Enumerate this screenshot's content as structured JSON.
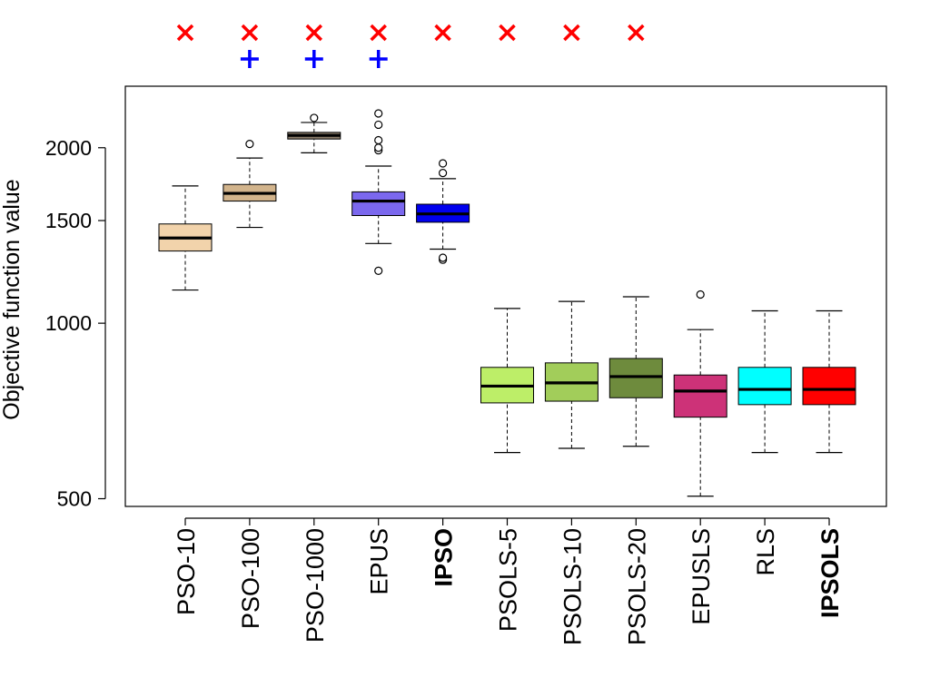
{
  "chart_data": {
    "type": "boxplot",
    "ylabel": "Objective function value",
    "y_scale": "log",
    "ylim": [
      485,
      2550
    ],
    "yticks": [
      500,
      1000,
      1500,
      2000
    ],
    "ytick_labels": [
      "500",
      "1000",
      "1500",
      "2000"
    ],
    "categories": [
      {
        "label": "PSO-10",
        "bold": false,
        "color": "#F2D3AB",
        "whisker_low": 1140,
        "q1": 1330,
        "median": 1400,
        "q3": 1480,
        "whisker_high": 1720,
        "outliers": []
      },
      {
        "label": "PSO-100",
        "bold": false,
        "color": "#D2B48C",
        "whisker_low": 1460,
        "q1": 1620,
        "median": 1670,
        "q3": 1730,
        "whisker_high": 1920,
        "outliers": [
          2030
        ]
      },
      {
        "label": "PSO-1000",
        "bold": false,
        "color": "#8B7D6B",
        "whisker_low": 1960,
        "q1": 2070,
        "median": 2100,
        "q3": 2125,
        "whisker_high": 2210,
        "outliers": [
          2250
        ]
      },
      {
        "label": "EPUS",
        "bold": false,
        "color": "#7B68EE",
        "whisker_low": 1370,
        "q1": 1530,
        "median": 1620,
        "q3": 1680,
        "whisker_high": 1860,
        "outliers": [
          1230,
          1980,
          2000,
          2060,
          2190,
          2290
        ]
      },
      {
        "label": "IPSO",
        "bold": true,
        "color": "#0000EE",
        "whisker_low": 1340,
        "q1": 1490,
        "median": 1540,
        "q3": 1600,
        "whisker_high": 1770,
        "outliers": [
          1285,
          1295,
          1810,
          1880
        ]
      },
      {
        "label": "PSOLS-5",
        "bold": false,
        "color": "#BDEE68",
        "whisker_low": 600,
        "q1": 730,
        "median": 780,
        "q3": 840,
        "whisker_high": 1060,
        "outliers": []
      },
      {
        "label": "PSOLS-10",
        "bold": false,
        "color": "#A2CD5A",
        "whisker_low": 610,
        "q1": 735,
        "median": 790,
        "q3": 855,
        "whisker_high": 1090,
        "outliers": []
      },
      {
        "label": "PSOLS-20",
        "bold": false,
        "color": "#6E8B3D",
        "whisker_low": 615,
        "q1": 745,
        "median": 810,
        "q3": 870,
        "whisker_high": 1110,
        "outliers": []
      },
      {
        "label": "EPUSLS",
        "bold": false,
        "color": "#CD3278",
        "whisker_low": 505,
        "q1": 690,
        "median": 765,
        "q3": 815,
        "whisker_high": 975,
        "outliers": [
          1120
        ]
      },
      {
        "label": "RLS",
        "bold": false,
        "color": "#00FFFF",
        "whisker_low": 600,
        "q1": 725,
        "median": 770,
        "q3": 840,
        "whisker_high": 1050,
        "outliers": []
      },
      {
        "label": "IPSOLS",
        "bold": true,
        "color": "#FF0000",
        "whisker_low": 600,
        "q1": 725,
        "median": 770,
        "q3": 840,
        "whisker_high": 1050,
        "outliers": []
      }
    ],
    "significance_markers": {
      "cross": {
        "symbol": "×",
        "color": "#FF0000",
        "categories": [
          "PSO-10",
          "PSO-100",
          "PSO-1000",
          "EPUS",
          "IPSO",
          "PSOLS-5",
          "PSOLS-10",
          "PSOLS-20"
        ]
      },
      "plus": {
        "symbol": "+",
        "color": "#0000FF",
        "categories": [
          "PSO-100",
          "PSO-1000",
          "EPUS"
        ]
      }
    }
  }
}
